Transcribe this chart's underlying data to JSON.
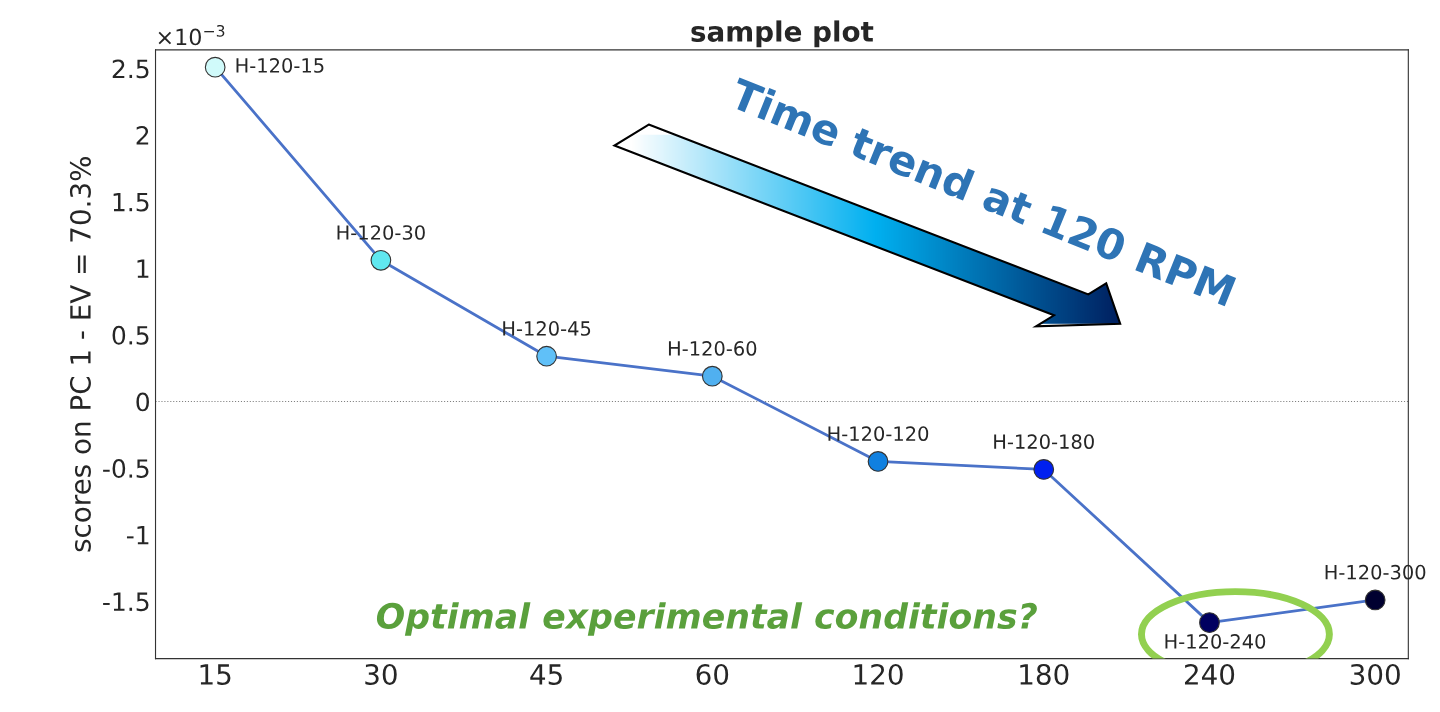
{
  "chart_data": {
    "type": "line",
    "title": "sample plot",
    "ylabel": "scores on PC 1 - EV = 70.3%",
    "categories": [
      "15",
      "30",
      "45",
      "60",
      "120",
      "180",
      "240",
      "300"
    ],
    "series": [
      {
        "color": "#4a72c8",
        "colors": [
          "#d0fafa",
          "#60e8f0",
          "#60c0f8",
          "#50b0f0",
          "#1080e0",
          "#0020f0",
          "#000060",
          "#000030"
        ],
        "values": [
          2.51,
          1.06,
          0.34,
          0.19,
          -0.45,
          -0.51,
          -1.66,
          -1.49
        ]
      }
    ],
    "ylim": [
      -1.93,
      2.64
    ],
    "yticks": [
      -1.5,
      -1,
      -0.5,
      0,
      0.5,
      1,
      1.5,
      2,
      2.5
    ],
    "marker": "circle",
    "line_style": "solid",
    "grid": false,
    "ref_lines": [
      {
        "axis": "y",
        "value": 0,
        "color": "#808080",
        "line_style": "dotted"
      }
    ],
    "annotations": [
      {
        "text": "H-120-15",
        "x": "15",
        "y": 2.51
      },
      {
        "text": "H-120-30",
        "x": "30",
        "y": 1.06
      },
      {
        "text": "H-120-45",
        "x": "45",
        "y": 0.34
      },
      {
        "text": "H-120-60",
        "x": "60",
        "y": 0.19
      },
      {
        "text": "H-120-120",
        "x": "120",
        "y": -0.45
      },
      {
        "text": "H-120-180",
        "x": "180",
        "y": -0.51
      },
      {
        "text": "H-120-240",
        "x": "240",
        "y": -1.66
      },
      {
        "text": "H-120-300",
        "x": "300",
        "y": -1.49
      },
      "×10$^{−3}$",
      "Time trend at 120 RPM",
      "Optimal experimental conditions?"
    ]
  }
}
